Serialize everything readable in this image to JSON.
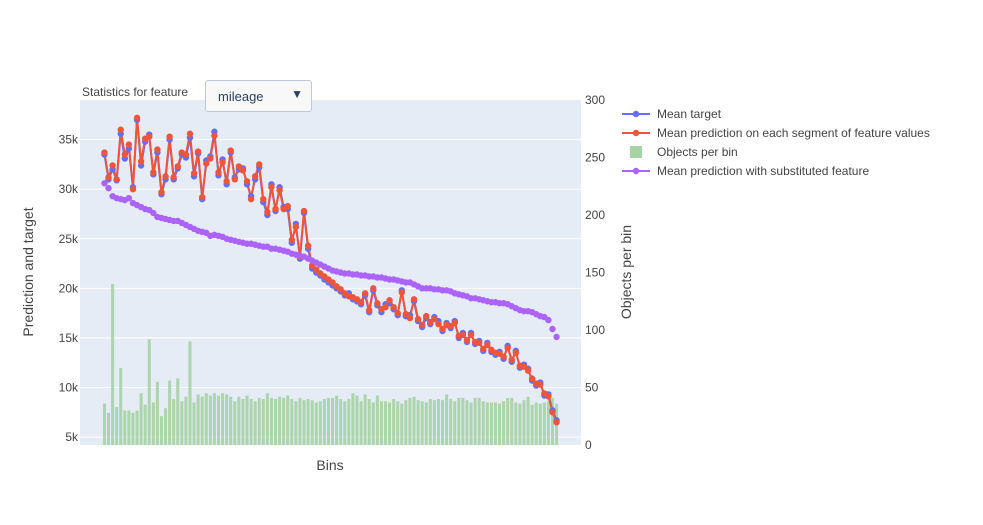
{
  "controls": {
    "stats_label": "Statistics for feature",
    "dropdown_value": "mileage",
    "dropdown_arrow": "▼"
  },
  "chart_data": {
    "type": "line",
    "xlabel": "Bins",
    "ylabel": "Prediction and target",
    "y2label": "Objects per bin",
    "ylim": [
      4200,
      39000
    ],
    "y2lim": [
      0,
      300
    ],
    "yticks": [
      5000,
      10000,
      15000,
      20000,
      25000,
      30000,
      35000
    ],
    "ytick_labels": [
      "5k",
      "10k",
      "15k",
      "20k",
      "25k",
      "30k",
      "35k"
    ],
    "y2ticks": [
      0,
      50,
      100,
      150,
      200,
      250,
      300
    ],
    "xlim": [
      -6,
      117
    ],
    "grid": true,
    "legend_position": "right",
    "colors": {
      "mean_target": "#636efa",
      "mean_prediction": "#ef553b",
      "objects_per_bin": "#a5d3a5",
      "substituted": "#ab63fa",
      "plot_bg": "#e5ecf6",
      "grid": "#ffffff"
    },
    "x": [
      0,
      1,
      2,
      3,
      4,
      5,
      6,
      7,
      8,
      9,
      10,
      11,
      12,
      13,
      14,
      15,
      16,
      17,
      18,
      19,
      20,
      21,
      22,
      23,
      24,
      25,
      26,
      27,
      28,
      29,
      30,
      31,
      32,
      33,
      34,
      35,
      36,
      37,
      38,
      39,
      40,
      41,
      42,
      43,
      44,
      45,
      46,
      47,
      48,
      49,
      50,
      51,
      52,
      53,
      54,
      55,
      56,
      57,
      58,
      59,
      60,
      61,
      62,
      63,
      64,
      65,
      66,
      67,
      68,
      69,
      70,
      71,
      72,
      73,
      74,
      75,
      76,
      77,
      78,
      79,
      80,
      81,
      82,
      83,
      84,
      85,
      86,
      87,
      88,
      89,
      90,
      91,
      92,
      93,
      94,
      95,
      96,
      97,
      98,
      99,
      100,
      101,
      102,
      103,
      104,
      105,
      106,
      107,
      108,
      109,
      110,
      111
    ],
    "series": [
      {
        "name": "Mean target",
        "values": [
          33500,
          31000,
          32000,
          30900,
          35600,
          33100,
          34100,
          30200,
          37000,
          32400,
          34800,
          35500,
          31500,
          33700,
          29500,
          31000,
          35000,
          31000,
          32100,
          33500,
          33200,
          35200,
          31300,
          33600,
          29000,
          32900,
          33300,
          35800,
          31400,
          33000,
          30500,
          33700,
          31200,
          32000,
          32100,
          30500,
          29300,
          31000,
          32200,
          28700,
          27400,
          30500,
          27800,
          30200,
          28200,
          28000,
          24600,
          26500,
          23000,
          27600,
          24000,
          22000,
          21600,
          21300,
          20900,
          20600,
          20300,
          20000,
          19700,
          19300,
          19500,
          18900,
          18700,
          18400,
          19300,
          17600,
          19800,
          18300,
          17600,
          18400,
          18500,
          17900,
          17300,
          19800,
          17200,
          17300,
          18700,
          16700,
          16100,
          17000,
          16400,
          17100,
          16700,
          15700,
          16500,
          16000,
          16700,
          15000,
          15500,
          14600,
          15500,
          14400,
          14700,
          13700,
          14500,
          13600,
          13300,
          13600,
          12900,
          14200,
          12600,
          13700,
          12000,
          12300,
          11900,
          10700,
          10200,
          10500,
          9200,
          9300,
          7700,
          6700
        ]
      },
      {
        "name": "Mean prediction on each segment of feature values",
        "values": [
          33700,
          31200,
          32400,
          31000,
          36000,
          33500,
          34500,
          30000,
          37200,
          32800,
          35100,
          35300,
          31700,
          34000,
          29700,
          31300,
          35300,
          31200,
          32300,
          33700,
          33500,
          35600,
          31600,
          33800,
          29200,
          32600,
          33100,
          35400,
          31700,
          32700,
          30800,
          33900,
          31000,
          32300,
          31900,
          30800,
          29000,
          31300,
          32500,
          29000,
          27700,
          30200,
          28000,
          29900,
          28000,
          28300,
          24900,
          26200,
          23200,
          27800,
          24300,
          22300,
          21900,
          21500,
          21200,
          20900,
          20600,
          20200,
          19900,
          19500,
          19200,
          19100,
          18900,
          18600,
          19500,
          17800,
          20000,
          18500,
          17900,
          18100,
          18800,
          18100,
          17500,
          19600,
          17400,
          17000,
          18900,
          16900,
          16300,
          17200,
          16600,
          16900,
          16400,
          15900,
          16300,
          16200,
          16500,
          15200,
          15300,
          14800,
          15300,
          14600,
          14500,
          13900,
          14300,
          13800,
          13500,
          13400,
          13100,
          14000,
          12800,
          13500,
          12200,
          12100,
          11700,
          10900,
          10400,
          10300,
          9400,
          9100,
          7500,
          6500
        ]
      },
      {
        "name": "Objects per bin",
        "values": [
          36,
          28,
          140,
          33,
          67,
          30,
          30,
          28,
          30,
          45,
          35,
          92,
          37,
          55,
          25,
          32,
          56,
          40,
          58,
          38,
          42,
          90,
          37,
          44,
          42,
          45,
          43,
          45,
          43,
          45,
          44,
          42,
          38,
          42,
          40,
          43,
          40,
          38,
          41,
          40,
          45,
          41,
          40,
          42,
          41,
          43,
          40,
          38,
          41,
          39,
          40,
          39,
          37,
          38,
          40,
          41,
          41,
          43,
          40,
          38,
          40,
          45,
          43,
          38,
          44,
          40,
          37,
          43,
          38,
          38,
          37,
          40,
          38,
          36,
          39,
          41,
          42,
          39,
          38,
          37,
          40,
          39,
          40,
          39,
          44,
          40,
          38,
          41,
          41,
          39,
          37,
          41,
          41,
          38,
          37,
          37,
          37,
          36,
          38,
          41,
          41,
          37,
          36,
          39,
          42,
          35,
          37,
          36,
          37,
          38,
          41,
          36
        ]
      },
      {
        "name": "Mean prediction with substituted feature",
        "values": [
          30600,
          30100,
          29300,
          29100,
          29000,
          28900,
          29100,
          28600,
          28400,
          28200,
          28000,
          27900,
          27600,
          27200,
          27100,
          27000,
          26900,
          26800,
          26800,
          26600,
          26400,
          26200,
          26000,
          25800,
          25700,
          25600,
          25300,
          25400,
          25300,
          25200,
          25000,
          24900,
          24800,
          24700,
          24600,
          24500,
          24500,
          24400,
          24300,
          24200,
          24200,
          24000,
          24000,
          23900,
          23800,
          23700,
          23500,
          23400,
          23300,
          23200,
          23000,
          22800,
          22600,
          22400,
          22200,
          22000,
          21800,
          21700,
          21600,
          21500,
          21500,
          21400,
          21400,
          21300,
          21300,
          21200,
          21200,
          21100,
          21100,
          21000,
          20900,
          20900,
          20800,
          20700,
          20600,
          20600,
          20400,
          20200,
          20000,
          20000,
          20000,
          19900,
          19900,
          19800,
          19800,
          19700,
          19500,
          19400,
          19300,
          19200,
          19000,
          19000,
          18900,
          18800,
          18700,
          18600,
          18600,
          18500,
          18500,
          18400,
          18200,
          18000,
          17800,
          17700,
          17700,
          17600,
          17400,
          17200,
          17100,
          16800,
          15900,
          15100
        ]
      }
    ]
  }
}
